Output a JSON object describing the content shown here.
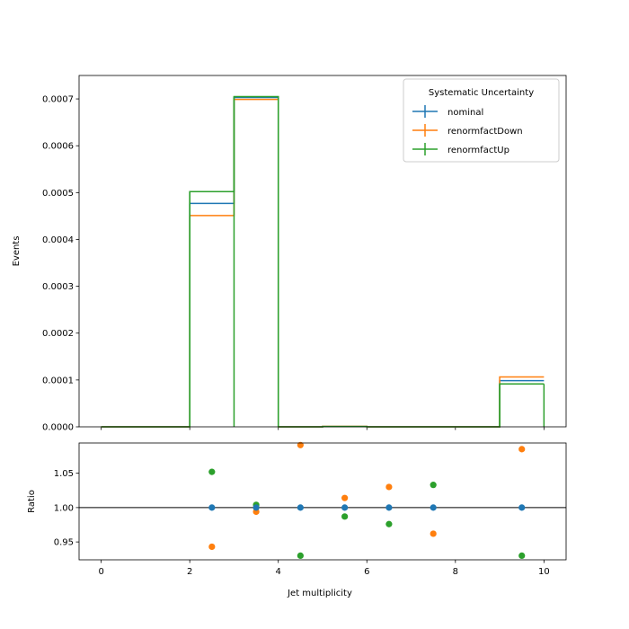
{
  "chart_data": [
    {
      "type": "step-histogram",
      "xlim": [
        -0.5,
        10.5
      ],
      "ylim": [
        0,
        0.00075
      ],
      "ylabel": "Events",
      "yticks": [
        0,
        0.0001,
        0.0002,
        0.0003,
        0.0004,
        0.0005,
        0.0006,
        0.0007
      ],
      "ytick_labels": [
        "0.0000",
        "0.0001",
        "0.0002",
        "0.0003",
        "0.0004",
        "0.0005",
        "0.0006",
        "0.0007"
      ],
      "bin_edges": [
        0,
        1,
        2,
        3,
        4,
        5,
        6,
        7,
        8,
        9,
        10
      ],
      "legend": {
        "title": "Systematic Uncertainty",
        "placement": "upper right"
      },
      "series": [
        {
          "name": "nominal",
          "color": "#1f77b4",
          "values": [
            0,
            0,
            0.000477,
            0.000703,
            0,
            8e-07,
            0,
            0,
            0,
            9.85e-05
          ]
        },
        {
          "name": "renormfactDown",
          "color": "#ff7f0e",
          "values": [
            0,
            0,
            0.000451,
            0.000699,
            0,
            9e-07,
            0,
            0,
            0,
            0.0001065
          ]
        },
        {
          "name": "renormfactUp",
          "color": "#2ca02c",
          "values": [
            0,
            0,
            0.000502,
            0.000705,
            0,
            8e-07,
            0,
            0,
            0,
            9.15e-05
          ]
        }
      ]
    },
    {
      "type": "scatter",
      "xlabel": "Jet multiplicity",
      "ylabel": "Ratio",
      "xlim": [
        -0.5,
        10.5
      ],
      "ylim": [
        0.924,
        1.094
      ],
      "xticks": [
        0,
        2,
        4,
        6,
        8,
        10
      ],
      "xtick_labels": [
        "0",
        "2",
        "4",
        "6",
        "8",
        "10"
      ],
      "yticks": [
        0.95,
        1.0,
        1.05
      ],
      "ytick_labels": [
        "0.95",
        "1.00",
        "1.05"
      ],
      "reference_line": 1.0,
      "x": [
        2.5,
        3.5,
        4.5,
        5.5,
        6.5,
        7.5,
        9.5
      ],
      "series": [
        {
          "name": "nominal",
          "color": "#1f77b4",
          "values": [
            1.0,
            1.0,
            1.0,
            1.0,
            1.0,
            1.0,
            1.0
          ]
        },
        {
          "name": "renormfactDown",
          "color": "#ff7f0e",
          "values": [
            0.943,
            0.994,
            1.091,
            1.014,
            1.03,
            0.962,
            1.085
          ]
        },
        {
          "name": "renormfactUp",
          "color": "#2ca02c",
          "values": [
            1.052,
            1.004,
            0.93,
            0.987,
            0.976,
            1.033,
            0.93
          ]
        }
      ]
    }
  ]
}
